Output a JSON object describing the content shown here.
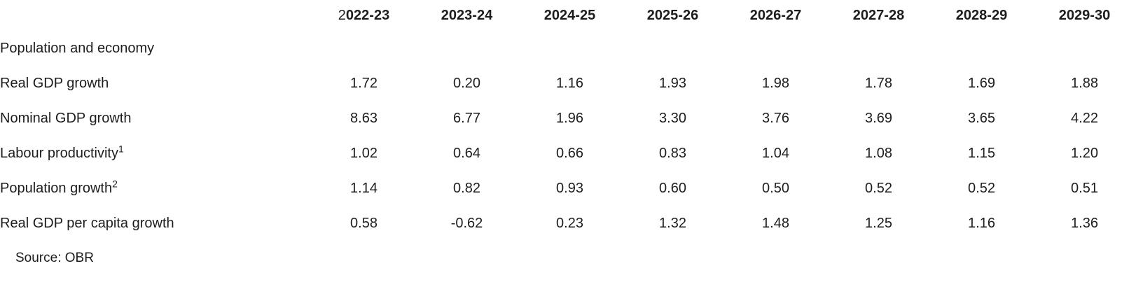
{
  "chart_data": {
    "type": "table",
    "columns": [
      "2022-23",
      "2023-24",
      "2024-25",
      "2025-26",
      "2026-27",
      "2027-28",
      "2028-29",
      "2029-30"
    ],
    "section": "Population and economy",
    "rows": [
      {
        "label": "Real GDP growth",
        "sup": "",
        "values": [
          "1.72",
          "0.20",
          "1.16",
          "1.93",
          "1.98",
          "1.78",
          "1.69",
          "1.88"
        ]
      },
      {
        "label": "Nominal GDP growth",
        "sup": "",
        "values": [
          "8.63",
          "6.77",
          "1.96",
          "3.30",
          "3.76",
          "3.69",
          "3.65",
          "4.22"
        ]
      },
      {
        "label": "Labour productivity",
        "sup": "1",
        "values": [
          "1.02",
          "0.64",
          "0.66",
          "0.83",
          "1.04",
          "1.08",
          "1.15",
          "1.20"
        ]
      },
      {
        "label": "Population growth",
        "sup": "2",
        "values": [
          "1.14",
          "0.82",
          "0.93",
          "0.60",
          "0.50",
          "0.52",
          "0.52",
          "0.51"
        ]
      },
      {
        "label": "Real GDP per capita growth",
        "sup": "",
        "values": [
          "0.58",
          "-0.62",
          "0.23",
          "1.32",
          "1.48",
          "1.25",
          "1.16",
          "1.36"
        ]
      }
    ],
    "source": "Source: OBR"
  },
  "render_quirks": {
    "first_year_header_regular_prefix_chars": 1
  },
  "colors": {
    "text": "#1d1d1d",
    "background": "#ffffff"
  }
}
